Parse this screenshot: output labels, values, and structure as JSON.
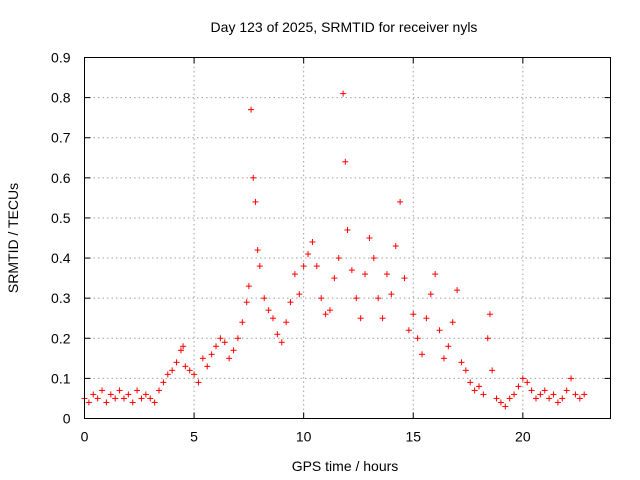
{
  "chart_data": {
    "type": "scatter",
    "title": "Day 123 of 2025, SRMTID for receiver nyls",
    "xlabel": "GPS time / hours",
    "ylabel": "SRMTID / TECUs",
    "xlim": [
      0,
      24
    ],
    "ylim": [
      0,
      0.9
    ],
    "xticks": [
      "0",
      "5",
      "10",
      "15",
      "20"
    ],
    "xtick_values": [
      0,
      5,
      10,
      15,
      20
    ],
    "yticks": [
      "0",
      "0.1",
      "0.2",
      "0.3",
      "0.4",
      "0.5",
      "0.6",
      "0.7",
      "0.8",
      "0.9"
    ],
    "ytick_values": [
      0,
      0.1,
      0.2,
      0.3,
      0.4,
      0.5,
      0.6,
      0.7,
      0.8,
      0.9
    ],
    "grid": true,
    "marker": "+",
    "color": "#ff0000",
    "series": [
      {
        "name": "SRMTID",
        "points": [
          [
            0.0,
            0.05
          ],
          [
            0.2,
            0.04
          ],
          [
            0.4,
            0.06
          ],
          [
            0.6,
            0.05
          ],
          [
            0.8,
            0.07
          ],
          [
            1.0,
            0.04
          ],
          [
            1.2,
            0.06
          ],
          [
            1.4,
            0.05
          ],
          [
            1.6,
            0.07
          ],
          [
            1.8,
            0.05
          ],
          [
            2.0,
            0.06
          ],
          [
            2.2,
            0.04
          ],
          [
            2.4,
            0.07
          ],
          [
            2.6,
            0.05
          ],
          [
            2.8,
            0.06
          ],
          [
            3.0,
            0.05
          ],
          [
            3.2,
            0.04
          ],
          [
            3.4,
            0.07
          ],
          [
            3.6,
            0.09
          ],
          [
            3.8,
            0.11
          ],
          [
            4.0,
            0.12
          ],
          [
            4.2,
            0.14
          ],
          [
            4.4,
            0.17
          ],
          [
            4.5,
            0.18
          ],
          [
            4.6,
            0.13
          ],
          [
            4.8,
            0.12
          ],
          [
            5.0,
            0.11
          ],
          [
            5.2,
            0.09
          ],
          [
            5.4,
            0.15
          ],
          [
            5.6,
            0.13
          ],
          [
            5.8,
            0.16
          ],
          [
            6.0,
            0.18
          ],
          [
            6.2,
            0.2
          ],
          [
            6.4,
            0.19
          ],
          [
            6.6,
            0.15
          ],
          [
            6.8,
            0.17
          ],
          [
            7.0,
            0.2
          ],
          [
            7.2,
            0.24
          ],
          [
            7.4,
            0.29
          ],
          [
            7.5,
            0.33
          ],
          [
            7.6,
            0.77
          ],
          [
            7.7,
            0.6
          ],
          [
            7.8,
            0.54
          ],
          [
            7.9,
            0.42
          ],
          [
            8.0,
            0.38
          ],
          [
            8.2,
            0.3
          ],
          [
            8.4,
            0.27
          ],
          [
            8.6,
            0.25
          ],
          [
            8.8,
            0.21
          ],
          [
            9.0,
            0.19
          ],
          [
            9.2,
            0.24
          ],
          [
            9.4,
            0.29
          ],
          [
            9.6,
            0.36
          ],
          [
            9.8,
            0.31
          ],
          [
            10.0,
            0.38
          ],
          [
            10.2,
            0.41
          ],
          [
            10.4,
            0.44
          ],
          [
            10.6,
            0.38
          ],
          [
            10.8,
            0.3
          ],
          [
            11.0,
            0.26
          ],
          [
            11.2,
            0.27
          ],
          [
            11.4,
            0.35
          ],
          [
            11.6,
            0.4
          ],
          [
            11.8,
            0.81
          ],
          [
            11.9,
            0.64
          ],
          [
            12.0,
            0.47
          ],
          [
            12.2,
            0.37
          ],
          [
            12.4,
            0.3
          ],
          [
            12.6,
            0.25
          ],
          [
            12.8,
            0.36
          ],
          [
            13.0,
            0.45
          ],
          [
            13.2,
            0.4
          ],
          [
            13.4,
            0.3
          ],
          [
            13.6,
            0.25
          ],
          [
            13.8,
            0.36
          ],
          [
            14.0,
            0.31
          ],
          [
            14.2,
            0.43
          ],
          [
            14.4,
            0.54
          ],
          [
            14.6,
            0.35
          ],
          [
            14.8,
            0.22
          ],
          [
            15.0,
            0.26
          ],
          [
            15.2,
            0.2
          ],
          [
            15.4,
            0.16
          ],
          [
            15.6,
            0.25
          ],
          [
            15.8,
            0.31
          ],
          [
            16.0,
            0.36
          ],
          [
            16.2,
            0.22
          ],
          [
            16.4,
            0.15
          ],
          [
            16.6,
            0.18
          ],
          [
            16.8,
            0.24
          ],
          [
            17.0,
            0.32
          ],
          [
            17.2,
            0.14
          ],
          [
            17.4,
            0.12
          ],
          [
            17.6,
            0.09
          ],
          [
            17.8,
            0.07
          ],
          [
            18.0,
            0.08
          ],
          [
            18.2,
            0.06
          ],
          [
            18.4,
            0.2
          ],
          [
            18.5,
            0.26
          ],
          [
            18.6,
            0.12
          ],
          [
            18.8,
            0.05
          ],
          [
            19.0,
            0.04
          ],
          [
            19.2,
            0.03
          ],
          [
            19.4,
            0.05
          ],
          [
            19.6,
            0.06
          ],
          [
            19.8,
            0.08
          ],
          [
            20.0,
            0.1
          ],
          [
            20.2,
            0.09
          ],
          [
            20.4,
            0.07
          ],
          [
            20.6,
            0.05
          ],
          [
            20.8,
            0.06
          ],
          [
            21.0,
            0.07
          ],
          [
            21.2,
            0.05
          ],
          [
            21.4,
            0.06
          ],
          [
            21.6,
            0.04
          ],
          [
            21.8,
            0.05
          ],
          [
            22.0,
            0.07
          ],
          [
            22.2,
            0.1
          ],
          [
            22.4,
            0.06
          ],
          [
            22.6,
            0.05
          ],
          [
            22.8,
            0.06
          ]
        ]
      }
    ]
  }
}
